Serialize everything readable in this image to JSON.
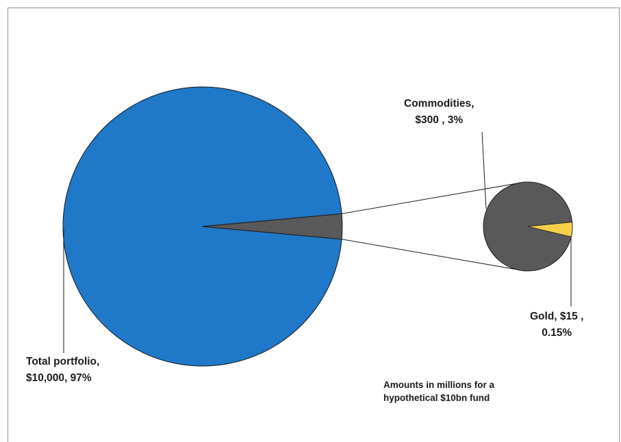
{
  "chart_data": {
    "type": "pie",
    "subtype": "pie-of-pie",
    "main_pie": {
      "slices": [
        {
          "name": "Total portfolio",
          "value": 10000,
          "percent": "97%",
          "color": "#1f78c8"
        },
        {
          "name": "Commodities",
          "value": 300,
          "percent": "3%",
          "color": "#595959"
        }
      ]
    },
    "secondary_pie": {
      "slices": [
        {
          "name": "Commodities",
          "value": 285,
          "color": "#595959"
        },
        {
          "name": "Gold",
          "value": 15,
          "percent": "0.15%",
          "color": "#f7d04a"
        }
      ]
    },
    "labels": {
      "total": [
        "Total portfolio,",
        "$10,000,  97%"
      ],
      "commodities": [
        "Commodities,",
        "$300 , 3%"
      ],
      "gold": [
        "Gold, $15 ,",
        "0.15%"
      ]
    },
    "annotation": [
      "Amounts in millions for a",
      "hypothetical $10bn fund"
    ]
  }
}
